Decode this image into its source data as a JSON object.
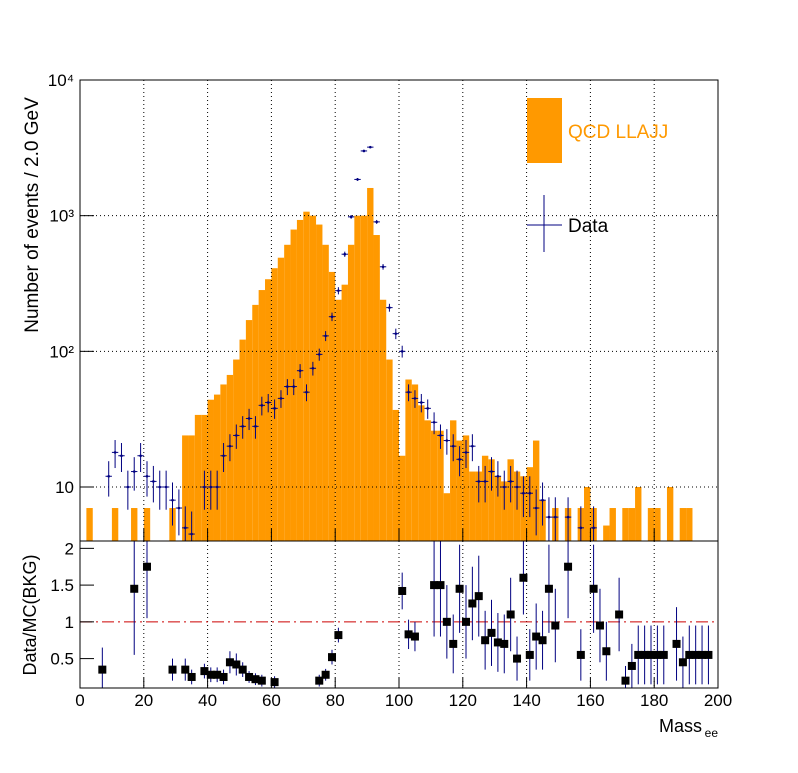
{
  "chart_data": [
    {
      "type": "histogram",
      "ylabel": "Number of events / 2.0 GeV",
      "log_y": true,
      "grid": true,
      "legend_position": "top-right",
      "xlim": [
        0,
        200
      ],
      "xticks": [
        0,
        20,
        40,
        60,
        80,
        100,
        120,
        140,
        160,
        180,
        200
      ],
      "ylim": [
        4,
        10000
      ],
      "yticks": [
        10,
        {
          "value": 100,
          "label": "10²"
        },
        {
          "value": 1000,
          "label": "10³"
        },
        {
          "value": 10000,
          "label": "10⁴"
        }
      ],
      "bins": [
        0,
        2,
        4,
        6,
        8,
        10,
        12,
        14,
        16,
        18,
        20,
        22,
        24,
        26,
        28,
        30,
        32,
        34,
        36,
        38,
        40,
        42,
        44,
        46,
        48,
        50,
        52,
        54,
        56,
        58,
        60,
        62,
        64,
        66,
        68,
        70,
        72,
        74,
        76,
        78,
        80,
        82,
        84,
        86,
        88,
        90,
        92,
        94,
        96,
        98,
        100,
        102,
        104,
        106,
        108,
        110,
        112,
        114,
        116,
        118,
        120,
        122,
        124,
        126,
        128,
        130,
        132,
        134,
        136,
        138,
        140,
        142,
        144,
        146,
        148,
        150,
        152,
        154,
        156,
        158,
        160,
        162,
        164,
        166,
        168,
        170,
        172,
        174,
        176,
        178,
        180,
        182,
        184,
        186,
        188,
        190,
        192,
        194,
        196,
        198,
        200
      ],
      "series": [
        {
          "name": "QCD LLAJJ",
          "color": "#ff9900",
          "values": [
            0,
            7,
            0,
            0,
            0,
            7,
            0,
            0,
            7,
            0,
            7,
            0,
            0,
            0,
            7,
            0,
            24,
            24,
            34,
            34,
            44,
            48,
            57,
            67,
            87,
            122,
            170,
            220,
            283,
            340,
            410,
            490,
            610,
            790,
            930,
            1070,
            1000,
            860,
            610,
            385,
            240,
            310,
            610,
            1000,
            1000,
            1600,
            720,
            240,
            87,
            37,
            17,
            62,
            57,
            40,
            31,
            26,
            26,
            9,
            31,
            22,
            24,
            13,
            13,
            17,
            16,
            12,
            11,
            16,
            13,
            12,
            14,
            22,
            8,
            0,
            7,
            0,
            7,
            0,
            7,
            10,
            7,
            0,
            5.2,
            7,
            0,
            7,
            7,
            10,
            0,
            7,
            7,
            0,
            10,
            0,
            7,
            7,
            0,
            0,
            0,
            0
          ]
        },
        {
          "name": "Data",
          "color": "#000080",
          "xerr": 1,
          "x": [
            9,
            11,
            13,
            15,
            17,
            19,
            21,
            23,
            25,
            27,
            29,
            31,
            33,
            35,
            39,
            41,
            43,
            45,
            47,
            49,
            51,
            53,
            55,
            57,
            59,
            61,
            63,
            65,
            67,
            69,
            71,
            73,
            75,
            77,
            79,
            81,
            83,
            85,
            87,
            89,
            91,
            93,
            95,
            97,
            99,
            101,
            103,
            105,
            107,
            109,
            111,
            113,
            115,
            117,
            119,
            121,
            123,
            125,
            127,
            129,
            131,
            133,
            135,
            137,
            139,
            141,
            143,
            145,
            147,
            149,
            153,
            157,
            161
          ],
          "values": [
            12,
            18,
            17,
            10,
            13,
            17,
            12,
            11,
            10,
            10,
            8,
            7,
            5,
            4.5,
            10,
            10,
            10,
            17,
            20,
            24,
            28,
            32,
            28,
            40,
            42,
            38,
            45,
            55,
            55,
            72,
            50,
            75,
            95,
            130,
            180,
            280,
            520,
            980,
            1850,
            3000,
            3200,
            900,
            420,
            210,
            135,
            100,
            50,
            45,
            42,
            38,
            30,
            24,
            22,
            20,
            16,
            18,
            20,
            11,
            11,
            13,
            12,
            10,
            11,
            10,
            9,
            9,
            7,
            8,
            6,
            6,
            6,
            5,
            5
          ],
          "yerr": [
            3.5,
            4.2,
            4.1,
            3.2,
            3.6,
            4.1,
            3.5,
            3.3,
            3.2,
            3.2,
            2.8,
            2.6,
            2.2,
            2.1,
            3.2,
            3.2,
            3.2,
            4.1,
            4.5,
            4.9,
            5.3,
            5.7,
            5.3,
            6.3,
            6.5,
            6.2,
            6.7,
            7.4,
            7.4,
            8.5,
            7.1,
            8.7,
            9.7,
            11,
            13,
            17,
            23,
            31,
            43,
            55,
            57,
            30,
            20,
            14,
            12,
            10,
            7.1,
            6.7,
            6.5,
            6.2,
            5.5,
            4.9,
            4.7,
            4.5,
            4,
            4.2,
            4.5,
            3.3,
            3.3,
            3.6,
            3.5,
            3.2,
            3.3,
            3.2,
            3,
            3,
            2.6,
            2.8,
            2.4,
            2.4,
            2.4,
            2.2,
            2.2
          ]
        }
      ]
    },
    {
      "type": "ratio",
      "ylabel": "Data/MC(BKG)",
      "xlabel": "Mass",
      "xlabel_sub": "ee",
      "grid": true,
      "color": "#000000",
      "xlim": [
        0,
        200
      ],
      "xticks": [
        0,
        20,
        40,
        60,
        80,
        100,
        120,
        140,
        160,
        180,
        200
      ],
      "ylim": [
        0.1,
        2.1
      ],
      "yticks": [
        0.5,
        1,
        1.5,
        2
      ],
      "reference_line": 1,
      "reference_color": "#cc0000",
      "x": [
        7,
        17,
        21,
        29,
        33,
        35,
        39,
        41,
        43,
        45,
        47,
        49,
        51,
        53,
        55,
        57,
        61,
        75,
        77,
        79,
        81,
        101,
        103,
        105,
        111,
        113,
        115,
        117,
        119,
        121,
        123,
        125,
        127,
        129,
        131,
        133,
        135,
        137,
        139,
        141,
        143,
        145,
        147,
        149,
        153,
        157,
        161,
        163,
        165,
        169,
        171,
        173,
        175,
        177,
        179,
        181,
        183,
        187,
        189,
        191,
        193,
        195,
        197
      ],
      "values": [
        0.35,
        1.45,
        1.75,
        0.35,
        0.35,
        0.25,
        0.33,
        0.28,
        0.28,
        0.25,
        0.45,
        0.42,
        0.35,
        0.25,
        0.22,
        0.2,
        0.18,
        0.2,
        0.28,
        0.52,
        0.82,
        1.42,
        0.83,
        0.8,
        1.5,
        1.5,
        1.0,
        0.7,
        1.45,
        1.0,
        1.25,
        1.35,
        0.75,
        0.85,
        0.72,
        0.7,
        1.1,
        0.5,
        1.6,
        0.55,
        0.8,
        0.75,
        1.45,
        0.95,
        1.75,
        0.55,
        1.45,
        0.95,
        0.6,
        1.1,
        0.2,
        0.4,
        0.55,
        0.55,
        0.55,
        0.55,
        0.55,
        0.7,
        0.45,
        0.55,
        0.55,
        0.55,
        0.55
      ],
      "yerr": [
        0.3,
        0.9,
        0.7,
        0.15,
        0.15,
        0.1,
        0.1,
        0.1,
        0.1,
        0.1,
        0.15,
        0.15,
        0.1,
        0.08,
        0.08,
        0.08,
        0.08,
        0.08,
        0.08,
        0.1,
        0.1,
        0.25,
        0.2,
        0.2,
        0.7,
        0.7,
        0.5,
        0.4,
        0.6,
        0.5,
        0.5,
        0.55,
        0.4,
        0.45,
        0.4,
        0.4,
        0.5,
        0.3,
        0.5,
        0.35,
        0.45,
        0.4,
        0.6,
        0.5,
        0.7,
        0.35,
        0.6,
        0.5,
        0.4,
        0.5,
        0.2,
        0.3,
        0.4,
        0.4,
        0.4,
        0.4,
        0.4,
        0.5,
        0.35,
        0.4,
        0.4,
        0.4,
        0.4
      ]
    }
  ]
}
